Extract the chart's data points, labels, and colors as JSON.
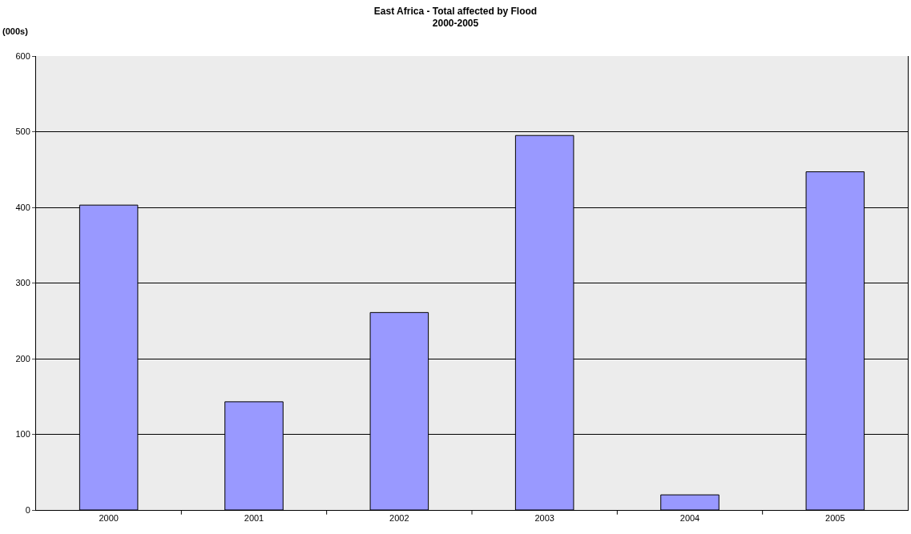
{
  "chart_data": {
    "type": "bar",
    "title": "East Africa - Total affected by Flood\n2000-2005",
    "ylabel": "(000s)",
    "categories": [
      "2000",
      "2001",
      "2002",
      "2003",
      "2004",
      "2005"
    ],
    "values": [
      403,
      143,
      261,
      495,
      20,
      447
    ],
    "color": "#9999ff",
    "ylim": [
      0,
      600
    ],
    "yticks": [
      0,
      100,
      200,
      300,
      400,
      500,
      600
    ],
    "grid": "y",
    "legend": false
  }
}
